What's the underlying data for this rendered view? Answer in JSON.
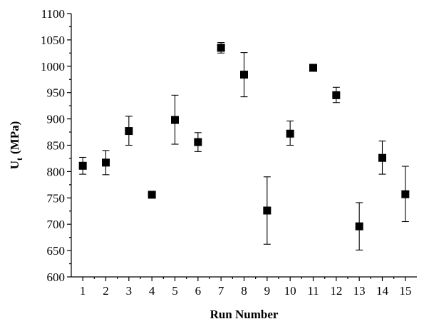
{
  "chart_data": {
    "type": "scatter",
    "title": "",
    "xlabel": "Run Number",
    "ylabel_main": "U",
    "ylabel_sub": "t",
    "ylabel_unit": "(MPa)",
    "xlim": [
      0.5,
      15.5
    ],
    "ylim": [
      600,
      1100
    ],
    "xticks": [
      1,
      2,
      3,
      4,
      5,
      6,
      7,
      8,
      9,
      10,
      11,
      12,
      13,
      14,
      15
    ],
    "yticks": [
      600,
      650,
      700,
      750,
      800,
      850,
      900,
      950,
      1000,
      1050,
      1100
    ],
    "grid": false,
    "marker": "square",
    "points": [
      {
        "x": 1,
        "y": 811,
        "err_low": 795,
        "err_high": 827
      },
      {
        "x": 2,
        "y": 817,
        "err_low": 794,
        "err_high": 840
      },
      {
        "x": 3,
        "y": 877,
        "err_low": 850,
        "err_high": 905
      },
      {
        "x": 4,
        "y": 756,
        "err_low": 756,
        "err_high": 756
      },
      {
        "x": 5,
        "y": 898,
        "err_low": 852,
        "err_high": 945
      },
      {
        "x": 6,
        "y": 856,
        "err_low": 838,
        "err_high": 874
      },
      {
        "x": 7,
        "y": 1035,
        "err_low": 1025,
        "err_high": 1045
      },
      {
        "x": 8,
        "y": 984,
        "err_low": 942,
        "err_high": 1026
      },
      {
        "x": 9,
        "y": 726,
        "err_low": 662,
        "err_high": 790
      },
      {
        "x": 10,
        "y": 872,
        "err_low": 850,
        "err_high": 896
      },
      {
        "x": 11,
        "y": 997,
        "err_low": 997,
        "err_high": 997
      },
      {
        "x": 12,
        "y": 945,
        "err_low": 931,
        "err_high": 960
      },
      {
        "x": 13,
        "y": 696,
        "err_low": 651,
        "err_high": 741
      },
      {
        "x": 14,
        "y": 826,
        "err_low": 795,
        "err_high": 858
      },
      {
        "x": 15,
        "y": 757,
        "err_low": 705,
        "err_high": 810
      }
    ]
  }
}
